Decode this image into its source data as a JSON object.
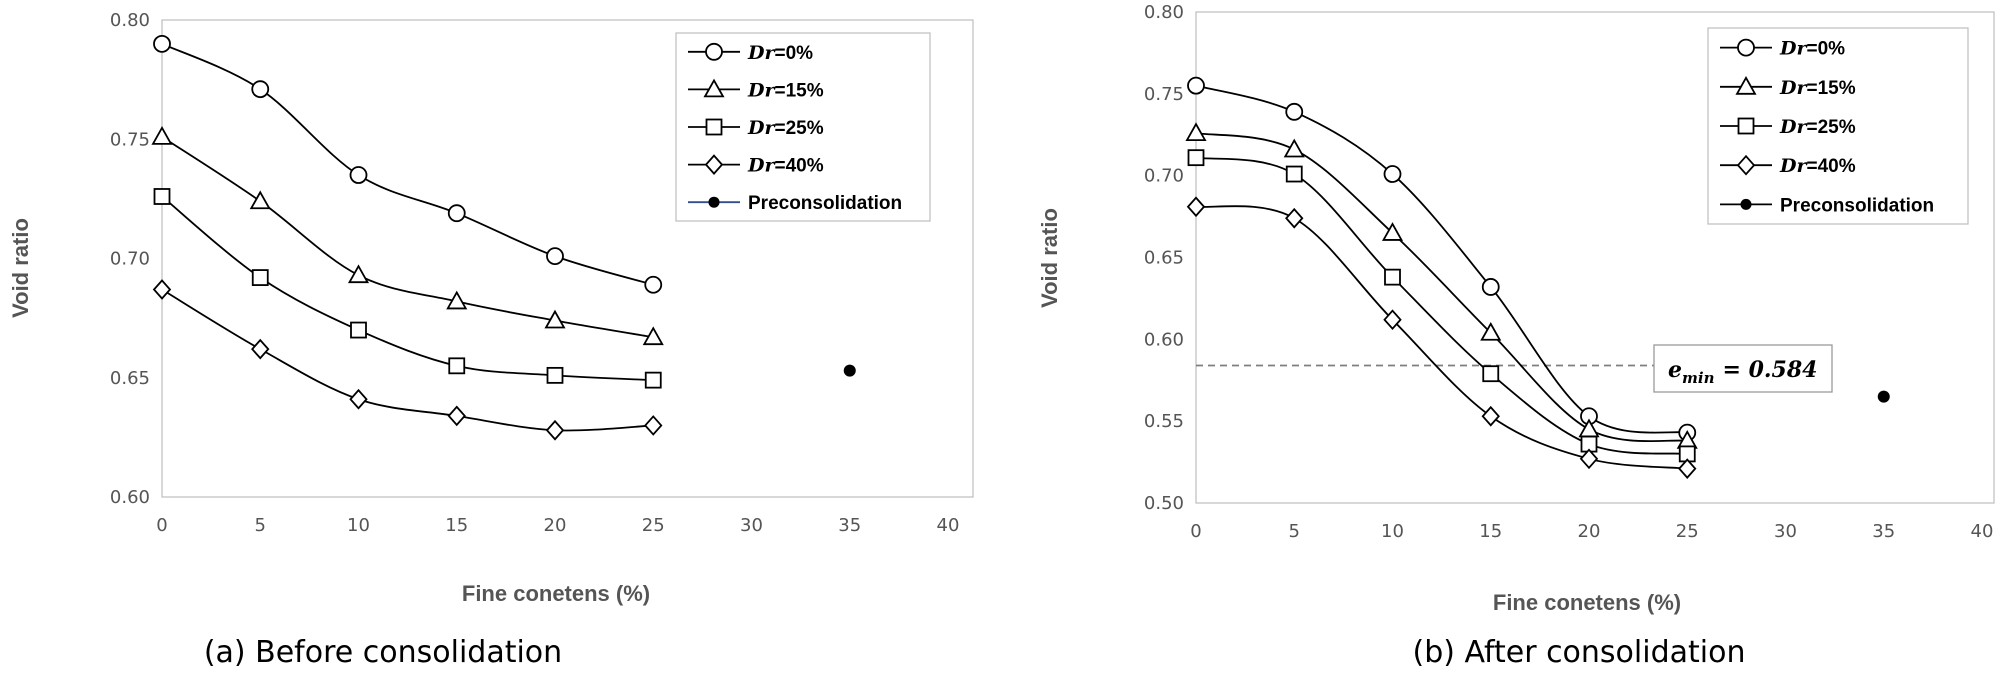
{
  "figure": {
    "panels": [
      {
        "caption": "(a) Before consolidation"
      },
      {
        "caption": "(b) After consolidation"
      }
    ]
  },
  "chart_data": [
    {
      "type": "line",
      "caption": "(a) Before consolidation",
      "xlabel": "Fine conetens (%)",
      "ylabel": "Void ratio",
      "xlim": [
        0,
        40
      ],
      "ylim": [
        0.6,
        0.8
      ],
      "xticks": [
        "0",
        "5",
        "10",
        "15",
        "20",
        "25",
        "30",
        "35",
        "40"
      ],
      "yticks": [
        "0.60",
        "0.65",
        "0.70",
        "0.75",
        "0.80"
      ],
      "x": [
        0,
        5,
        10,
        15,
        20,
        25
      ],
      "legend_position": "top-right",
      "series": [
        {
          "name": "Dr=0%",
          "label_prefix": "Dr",
          "label_suffix": "=0%",
          "marker": "circle",
          "values": [
            0.79,
            0.771,
            0.735,
            0.719,
            0.701,
            0.689
          ]
        },
        {
          "name": "Dr=15%",
          "label_prefix": "Dr",
          "label_suffix": "=15%",
          "marker": "triangle",
          "values": [
            0.751,
            0.724,
            0.693,
            0.682,
            0.674,
            0.667
          ]
        },
        {
          "name": "Dr=25%",
          "label_prefix": "Dr",
          "label_suffix": "=25%",
          "marker": "square",
          "values": [
            0.726,
            0.692,
            0.67,
            0.655,
            0.651,
            0.649
          ]
        },
        {
          "name": "Dr=40%",
          "label_prefix": "Dr",
          "label_suffix": "=40%",
          "marker": "diamond",
          "values": [
            0.687,
            0.662,
            0.641,
            0.634,
            0.628,
            0.63
          ]
        }
      ],
      "preconsolidation": {
        "name": "Preconsolidation",
        "x": 35,
        "y": 0.653
      }
    },
    {
      "type": "line",
      "caption": "(b) After consolidation",
      "xlabel": "Fine conetens (%)",
      "ylabel": "Void ratio",
      "xlim": [
        0,
        40
      ],
      "ylim": [
        0.5,
        0.8
      ],
      "xticks": [
        "0",
        "5",
        "10",
        "15",
        "20",
        "25",
        "30",
        "35",
        "40"
      ],
      "yticks": [
        "0.50",
        "0.55",
        "0.60",
        "0.65",
        "0.70",
        "0.75",
        "0.80"
      ],
      "x": [
        0,
        5,
        10,
        15,
        20,
        25
      ],
      "legend_position": "top-right",
      "series": [
        {
          "name": "Dr=0%",
          "label_prefix": "Dr",
          "label_suffix": "=0%",
          "marker": "circle",
          "values": [
            0.755,
            0.739,
            0.701,
            0.632,
            0.553,
            0.543
          ]
        },
        {
          "name": "Dr=15%",
          "label_prefix": "Dr",
          "label_suffix": "=15%",
          "marker": "triangle",
          "values": [
            0.726,
            0.716,
            0.665,
            0.604,
            0.545,
            0.538
          ]
        },
        {
          "name": "Dr=25%",
          "label_prefix": "Dr",
          "label_suffix": "=25%",
          "marker": "square",
          "values": [
            0.711,
            0.701,
            0.638,
            0.579,
            0.536,
            0.53
          ]
        },
        {
          "name": "Dr=40%",
          "label_prefix": "Dr",
          "label_suffix": "=40%",
          "marker": "diamond",
          "values": [
            0.681,
            0.674,
            0.612,
            0.553,
            0.527,
            0.521
          ]
        }
      ],
      "preconsolidation": {
        "name": "Preconsolidation",
        "x": 35,
        "y": 0.565
      },
      "reference_line": {
        "y": 0.584,
        "label_base": "e",
        "label_sub": "min",
        "label_value": "= 0.584"
      }
    }
  ]
}
